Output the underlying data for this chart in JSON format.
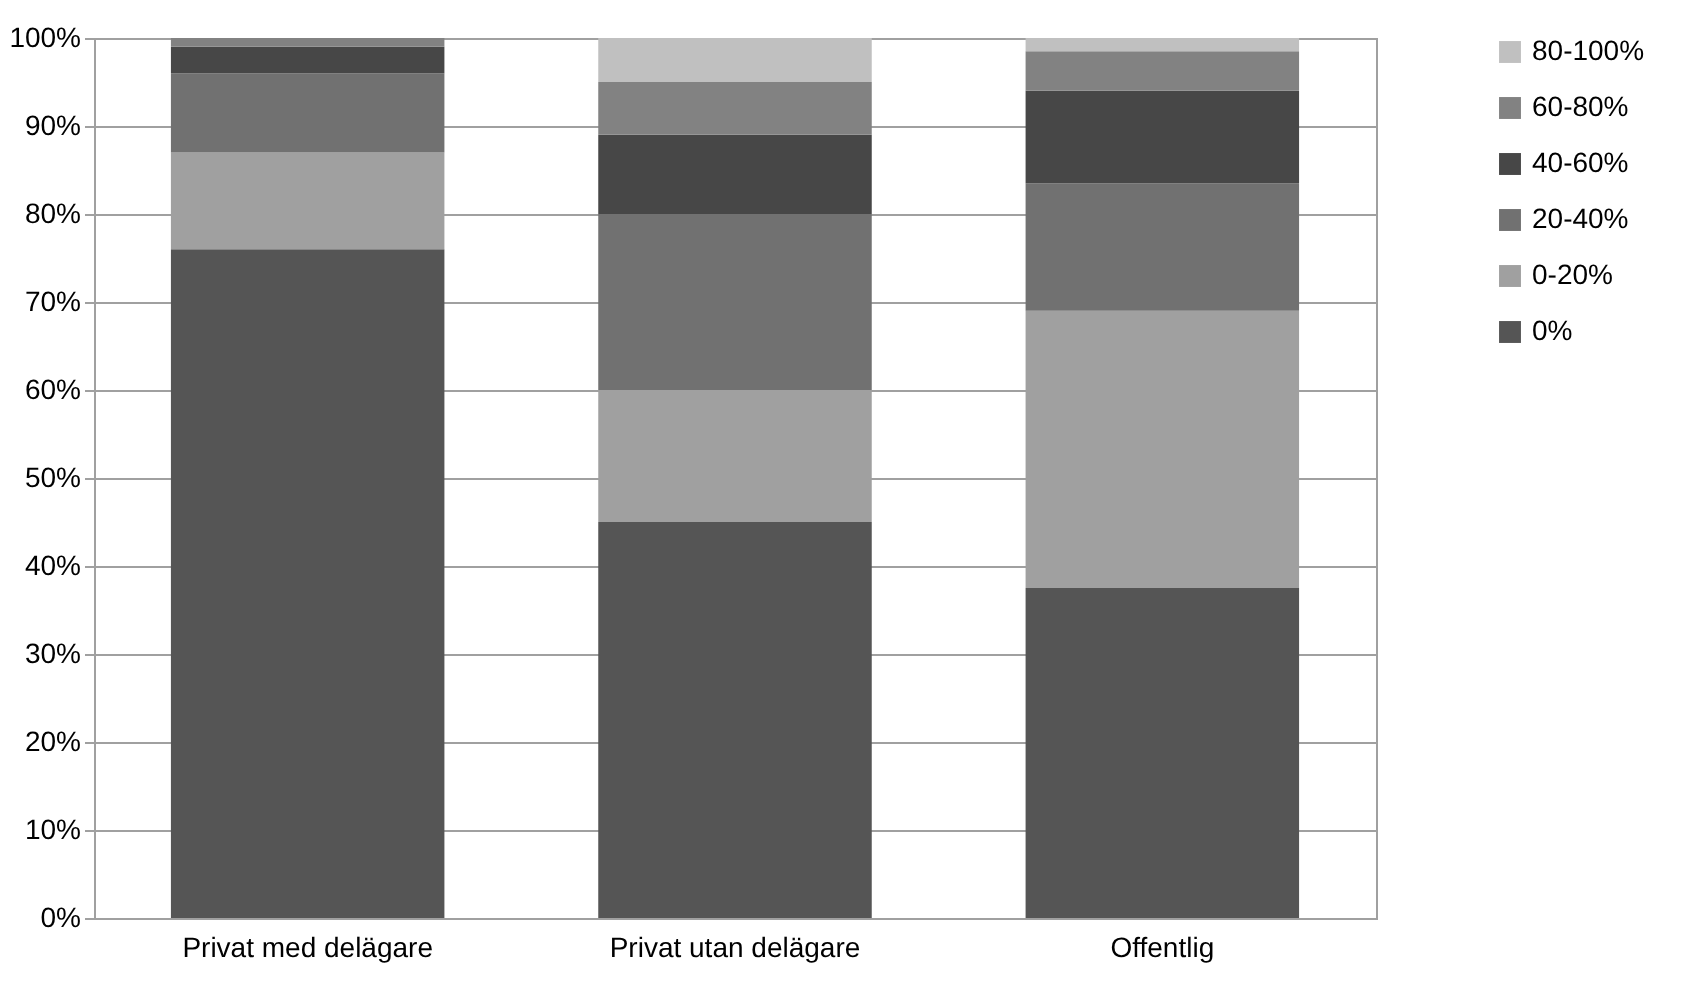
{
  "chart_data": {
    "type": "bar",
    "stacked": true,
    "categories": [
      "Privat med delägare",
      "Privat utan delägare",
      "Offentlig"
    ],
    "series": [
      {
        "name": "0%",
        "color": "#555555",
        "values": [
          76,
          45,
          37.5
        ]
      },
      {
        "name": "0-20%",
        "color": "#a0a0a0",
        "values": [
          11,
          15,
          31.5
        ]
      },
      {
        "name": "20-40%",
        "color": "#717171",
        "values": [
          9,
          20,
          14.5
        ]
      },
      {
        "name": "40-60%",
        "color": "#474747",
        "values": [
          3,
          9,
          10.5
        ]
      },
      {
        "name": "60-80%",
        "color": "#828282",
        "values": [
          1,
          6,
          4.5
        ]
      },
      {
        "name": "80-100%",
        "color": "#c0c0c0",
        "values": [
          0,
          5,
          1.5
        ]
      }
    ],
    "ylim": [
      0,
      100
    ],
    "yticks": [
      {
        "value": 0,
        "label": "0%"
      },
      {
        "value": 10,
        "label": "10%"
      },
      {
        "value": 20,
        "label": "20%"
      },
      {
        "value": 30,
        "label": "30%"
      },
      {
        "value": 40,
        "label": "40%"
      },
      {
        "value": 50,
        "label": "50%"
      },
      {
        "value": 60,
        "label": "60%"
      },
      {
        "value": 70,
        "label": "70%"
      },
      {
        "value": 80,
        "label": "80%"
      },
      {
        "value": 90,
        "label": "90%"
      },
      {
        "value": 100,
        "label": "100%"
      }
    ],
    "grid": "y",
    "legend": "right"
  }
}
